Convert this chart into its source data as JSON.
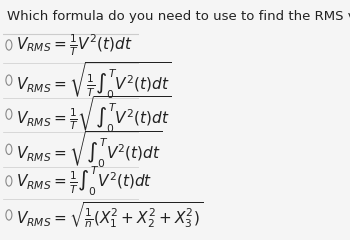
{
  "title": "Which formula do you need to use to find the RMS value of the signal?",
  "background_color": "#f5f5f5",
  "title_fontsize": 9.5,
  "option_fontsize": 11,
  "options": [
    "$V_{RMS} = \\frac{1}{T}V^{2}(t)dt$",
    "$V_{RMS} = \\sqrt{\\frac{1}{T}\\int_0^{T} V^{2}(t)dt}$",
    "$V_{RMS} = \\frac{1}{T}\\sqrt{\\int_0^{T} V^{2}(t)dt}$",
    "$V_{RMS} = \\sqrt{\\int_0^{T} V^{2}(t)dt}$",
    "$V_{RMS} = \\frac{1}{T}\\int_0^{T} V^{2}(t)dt$",
    "$V_{RMS} = \\sqrt{\\frac{1}{n}(X_1^2 + X_2^2 + X_3^2)}$"
  ],
  "circle_color": "#888888",
  "text_color": "#222222",
  "line_color": "#cccccc"
}
